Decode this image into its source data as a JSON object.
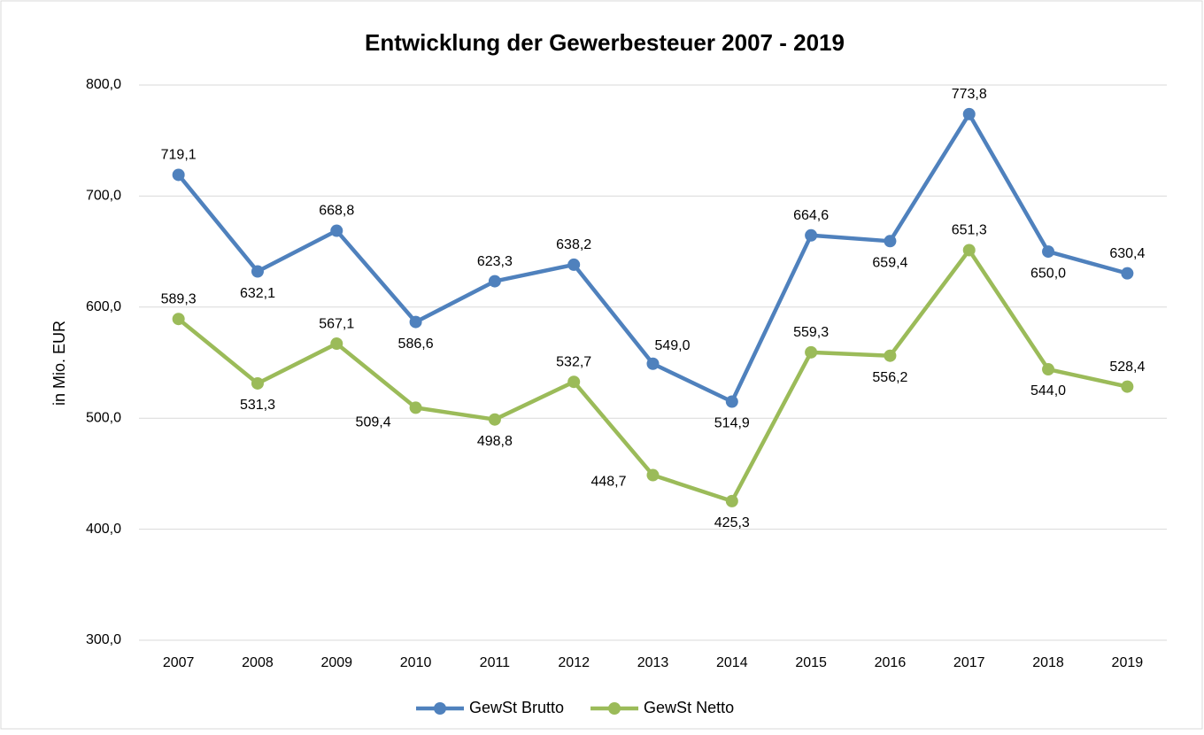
{
  "chart_data": {
    "type": "line",
    "title": "Entwicklung der Gewerbesteuer 2007 - 2019",
    "y_label": "in Mio. EUR",
    "categories": [
      "2007",
      "2008",
      "2009",
      "2010",
      "2011",
      "2012",
      "2013",
      "2014",
      "2015",
      "2016",
      "2017",
      "2018",
      "2019"
    ],
    "series": [
      {
        "name": "GewSt Brutto",
        "color": "#4f81bd",
        "values": [
          719.1,
          632.1,
          668.8,
          586.6,
          623.3,
          638.2,
          549.0,
          514.9,
          664.6,
          659.4,
          773.8,
          650.0,
          630.4
        ],
        "value_labels": [
          "719,1",
          "632,1",
          "668,8",
          "586,6",
          "623,3",
          "638,2",
          "549,0",
          "514,9",
          "664,6",
          "659,4",
          "773,8",
          "650,0",
          "630,4"
        ]
      },
      {
        "name": "GewSt Netto",
        "color": "#9bbb59",
        "values": [
          589.3,
          531.3,
          567.1,
          509.4,
          498.8,
          532.7,
          448.7,
          425.3,
          559.3,
          556.2,
          651.3,
          544.0,
          528.4
        ],
        "value_labels": [
          "589,3",
          "531,3",
          "567,1",
          "509,4",
          "498,8",
          "532,7",
          "448,7",
          "425,3",
          "559,3",
          "556,2",
          "651,3",
          "544,0",
          "528,4"
        ]
      }
    ],
    "ylim": [
      300,
      800
    ],
    "yticks": [
      {
        "value": 300,
        "label": "300,0"
      },
      {
        "value": 400,
        "label": "400,0"
      },
      {
        "value": 500,
        "label": "500,0"
      },
      {
        "value": 600,
        "label": "600,0"
      },
      {
        "value": 700,
        "label": "700,0"
      },
      {
        "value": 800,
        "label": "800,0"
      }
    ],
    "grid": true,
    "legend": "bottom"
  }
}
